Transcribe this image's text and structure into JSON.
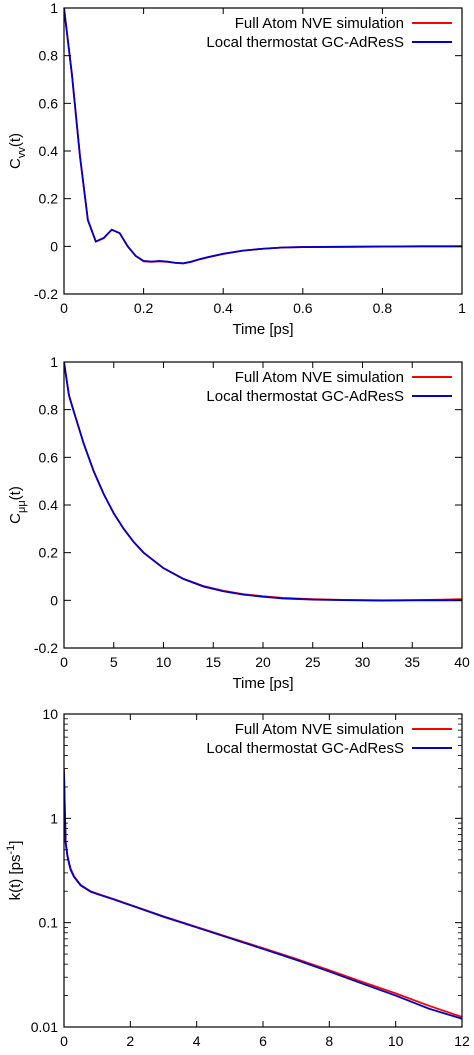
{
  "chart_data": [
    {
      "type": "line",
      "xlabel": "Time [ps]",
      "ylabel_main": "C",
      "ylabel_sub": "vv",
      "ylabel_tail": "(t)",
      "yscale": "linear",
      "xlim": [
        0,
        1
      ],
      "ylim": [
        -0.2,
        1
      ],
      "xticks": [
        "0",
        "0.2",
        "0.4",
        "0.6",
        "0.8",
        "1"
      ],
      "yticks": [
        "-0.2",
        "0",
        "0.2",
        "0.4",
        "0.6",
        "0.8",
        "1"
      ],
      "grid": false,
      "legend_position": "top-right",
      "series": [
        {
          "name": "Full Atom NVE simulation",
          "color": "#ff0000",
          "x": [
            0,
            0.02,
            0.04,
            0.06,
            0.08,
            0.1,
            0.12,
            0.14,
            0.16,
            0.18,
            0.2,
            0.22,
            0.24,
            0.26,
            0.28,
            0.3,
            0.32,
            0.34,
            0.36,
            0.4,
            0.45,
            0.5,
            0.55,
            0.6,
            0.7,
            0.8,
            0.9,
            1.0
          ],
          "y": [
            1.0,
            0.72,
            0.38,
            0.11,
            0.02,
            0.035,
            0.07,
            0.055,
            0.0,
            -0.04,
            -0.063,
            -0.065,
            -0.063,
            -0.065,
            -0.07,
            -0.072,
            -0.065,
            -0.055,
            -0.047,
            -0.032,
            -0.018,
            -0.01,
            -0.005,
            -0.003,
            -0.002,
            -0.001,
            0.0,
            0.0
          ]
        },
        {
          "name": "Local thermostat GC-AdResS",
          "color": "#0000cc",
          "x": [
            0,
            0.02,
            0.04,
            0.06,
            0.08,
            0.1,
            0.12,
            0.14,
            0.16,
            0.18,
            0.2,
            0.22,
            0.24,
            0.26,
            0.28,
            0.3,
            0.32,
            0.34,
            0.36,
            0.4,
            0.45,
            0.5,
            0.55,
            0.6,
            0.7,
            0.8,
            0.9,
            1.0
          ],
          "y": [
            1.0,
            0.72,
            0.38,
            0.11,
            0.02,
            0.035,
            0.07,
            0.055,
            0.0,
            -0.04,
            -0.061,
            -0.064,
            -0.061,
            -0.064,
            -0.069,
            -0.071,
            -0.064,
            -0.054,
            -0.046,
            -0.031,
            -0.018,
            -0.01,
            -0.005,
            -0.003,
            -0.002,
            -0.001,
            0.0,
            0.0
          ]
        }
      ]
    },
    {
      "type": "line",
      "xlabel": "Time [ps]",
      "ylabel_main": "C",
      "ylabel_sub": "μμ",
      "ylabel_tail": "(t)",
      "yscale": "linear",
      "xlim": [
        0,
        40
      ],
      "ylim": [
        -0.2,
        1
      ],
      "xticks": [
        "0",
        "5",
        "10",
        "15",
        "20",
        "25",
        "30",
        "35",
        "40"
      ],
      "yticks": [
        "-0.2",
        "0",
        "0.2",
        "0.4",
        "0.6",
        "0.8",
        "1"
      ],
      "grid": false,
      "legend_position": "top-right",
      "series": [
        {
          "name": "Full Atom NVE simulation",
          "color": "#ff0000",
          "x": [
            0,
            0.5,
            1,
            2,
            3,
            4,
            5,
            6,
            7,
            8,
            10,
            12,
            14,
            16,
            18,
            20,
            22,
            25,
            28,
            30,
            32,
            35,
            38,
            40
          ],
          "y": [
            1.0,
            0.86,
            0.79,
            0.655,
            0.54,
            0.445,
            0.365,
            0.3,
            0.245,
            0.2,
            0.135,
            0.09,
            0.06,
            0.04,
            0.026,
            0.017,
            0.01,
            0.005,
            0.002,
            0.001,
            0.0,
            0.001,
            0.003,
            0.005
          ]
        },
        {
          "name": "Local thermostat GC-AdResS",
          "color": "#0000cc",
          "x": [
            0,
            0.5,
            1,
            2,
            3,
            4,
            5,
            6,
            7,
            8,
            10,
            12,
            14,
            16,
            18,
            20,
            22,
            25,
            28,
            30,
            32,
            35,
            38,
            40
          ],
          "y": [
            1.0,
            0.86,
            0.79,
            0.655,
            0.54,
            0.445,
            0.365,
            0.3,
            0.245,
            0.2,
            0.135,
            0.09,
            0.058,
            0.038,
            0.024,
            0.015,
            0.008,
            0.003,
            0.001,
            0.0,
            -0.001,
            0.0,
            0.0,
            0.0
          ]
        }
      ]
    },
    {
      "type": "line",
      "xlabel": "Time [ps]",
      "ylabel_main": "k(t) [ps",
      "ylabel_sup": "-1",
      "ylabel_tail": "]",
      "yscale": "log",
      "xlim": [
        0,
        12
      ],
      "ylim": [
        0.01,
        10
      ],
      "xticks": [
        "0",
        "2",
        "4",
        "6",
        "8",
        "10",
        "12"
      ],
      "yticks": [
        "0.01",
        "0.1",
        "1",
        "10"
      ],
      "grid": false,
      "legend_position": "top-right",
      "series": [
        {
          "name": "Full Atom NVE simulation",
          "color": "#ff0000",
          "x": [
            0,
            0.02,
            0.05,
            0.1,
            0.15,
            0.2,
            0.3,
            0.5,
            0.8,
            1.0,
            1.5,
            2,
            3,
            4,
            5,
            6,
            7,
            8,
            9,
            10,
            11,
            12
          ],
          "y": [
            3.0,
            1.5,
            0.6,
            0.45,
            0.38,
            0.33,
            0.28,
            0.23,
            0.2,
            0.19,
            0.168,
            0.148,
            0.115,
            0.091,
            0.072,
            0.057,
            0.045,
            0.035,
            0.027,
            0.021,
            0.016,
            0.0125
          ]
        },
        {
          "name": "Local thermostat GC-AdResS",
          "color": "#0000cc",
          "x": [
            0,
            0.02,
            0.05,
            0.1,
            0.15,
            0.2,
            0.3,
            0.5,
            0.8,
            1.0,
            1.5,
            2,
            3,
            4,
            5,
            6,
            7,
            8,
            9,
            10,
            11,
            12
          ],
          "y": [
            2.8,
            1.4,
            0.58,
            0.44,
            0.37,
            0.32,
            0.275,
            0.228,
            0.198,
            0.188,
            0.167,
            0.147,
            0.114,
            0.09,
            0.071,
            0.056,
            0.044,
            0.034,
            0.026,
            0.02,
            0.015,
            0.012
          ]
        }
      ]
    }
  ]
}
